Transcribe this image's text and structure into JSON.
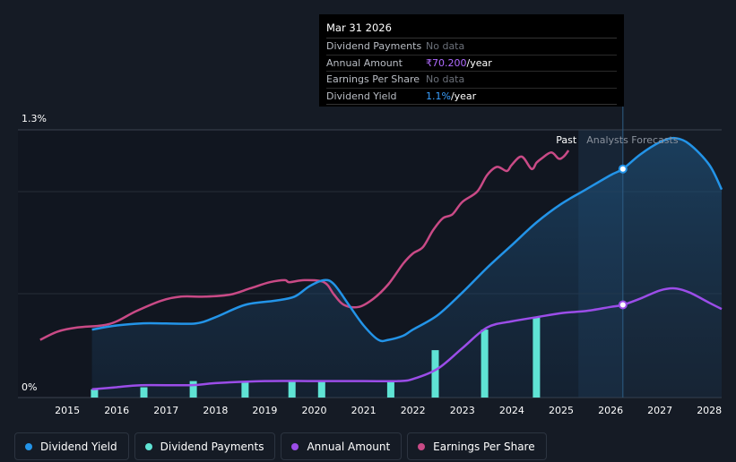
{
  "tooltip": {
    "date": "Mar 31 2026",
    "rows": [
      {
        "label": "Dividend Payments",
        "value": "No data"
      },
      {
        "label": "Annual Amount",
        "value_hl": "₹70.200",
        "value_rest": "/year"
      },
      {
        "label": "Earnings Per Share",
        "value": "No data"
      },
      {
        "label": "Dividend Yield",
        "value_hl": "1.1%",
        "value_rest": "/year"
      }
    ]
  },
  "legend": [
    {
      "label": "Dividend Yield",
      "color": "#2394e8"
    },
    {
      "label": "Dividend Payments",
      "color": "#5fe3d4"
    },
    {
      "label": "Annual Amount",
      "color": "#9b4de8"
    },
    {
      "label": "Earnings Per Share",
      "color": "#c94a86"
    }
  ],
  "chart_data": {
    "type": "line",
    "title": "",
    "y_tick_labels": [
      "1.3%",
      "0%"
    ],
    "ylim": [
      0,
      1.3
    ],
    "x_tick_labels": [
      "2015",
      "2016",
      "2017",
      "2018",
      "2019",
      "2020",
      "2021",
      "2022",
      "2023",
      "2024",
      "2025",
      "2026",
      "2027",
      "2028"
    ],
    "xlim": [
      2014.0,
      2028.25
    ],
    "past_label": "Past",
    "forecast_label": "Analysts Forecasts",
    "forecast_start": 2025.35,
    "tooltip_x": 2026.25,
    "colors": {
      "dividend_yield": "#2394e8",
      "dividend_payments": "#5fe3d4",
      "annual_amount": "#9b4de8",
      "earnings_per_share": "#c94a86"
    },
    "series": [
      {
        "name": "Dividend Yield",
        "unit": "%",
        "points": [
          [
            2015.5,
            0.33
          ],
          [
            2016.0,
            0.35
          ],
          [
            2016.5,
            0.36
          ],
          [
            2017.0,
            0.36
          ],
          [
            2017.6,
            0.36
          ],
          [
            2018.0,
            0.39
          ],
          [
            2018.6,
            0.45
          ],
          [
            2019.2,
            0.47
          ],
          [
            2019.6,
            0.49
          ],
          [
            2019.9,
            0.54
          ],
          [
            2020.2,
            0.57
          ],
          [
            2020.4,
            0.55
          ],
          [
            2020.7,
            0.45
          ],
          [
            2021.0,
            0.35
          ],
          [
            2021.3,
            0.28
          ],
          [
            2021.5,
            0.28
          ],
          [
            2021.8,
            0.3
          ],
          [
            2022.0,
            0.33
          ],
          [
            2022.5,
            0.4
          ],
          [
            2023.0,
            0.51
          ],
          [
            2023.5,
            0.63
          ],
          [
            2024.0,
            0.74
          ],
          [
            2024.5,
            0.85
          ],
          [
            2025.0,
            0.94
          ],
          [
            2025.5,
            1.01
          ],
          [
            2026.0,
            1.08
          ],
          [
            2026.25,
            1.11
          ],
          [
            2026.6,
            1.18
          ],
          [
            2027.0,
            1.24
          ],
          [
            2027.3,
            1.26
          ],
          [
            2027.6,
            1.23
          ],
          [
            2028.0,
            1.13
          ],
          [
            2028.25,
            1.01
          ]
        ]
      },
      {
        "name": "Annual Amount",
        "unit": "% scale",
        "points": [
          [
            2015.5,
            0.04
          ],
          [
            2016.0,
            0.05
          ],
          [
            2016.5,
            0.06
          ],
          [
            2017.5,
            0.06
          ],
          [
            2018.0,
            0.07
          ],
          [
            2019.0,
            0.08
          ],
          [
            2020.0,
            0.08
          ],
          [
            2021.0,
            0.08
          ],
          [
            2021.7,
            0.08
          ],
          [
            2022.0,
            0.09
          ],
          [
            2022.5,
            0.14
          ],
          [
            2023.0,
            0.24
          ],
          [
            2023.5,
            0.34
          ],
          [
            2024.0,
            0.37
          ],
          [
            2024.5,
            0.39
          ],
          [
            2025.0,
            0.41
          ],
          [
            2025.5,
            0.42
          ],
          [
            2026.0,
            0.44
          ],
          [
            2026.25,
            0.45
          ],
          [
            2026.6,
            0.48
          ],
          [
            2027.0,
            0.52
          ],
          [
            2027.3,
            0.53
          ],
          [
            2027.6,
            0.51
          ],
          [
            2028.0,
            0.46
          ],
          [
            2028.25,
            0.43
          ]
        ]
      },
      {
        "name": "Earnings Per Share",
        "unit": "% scale",
        "points": [
          [
            2014.45,
            0.28
          ],
          [
            2014.8,
            0.32
          ],
          [
            2015.2,
            0.34
          ],
          [
            2015.7,
            0.35
          ],
          [
            2016.0,
            0.37
          ],
          [
            2016.4,
            0.42
          ],
          [
            2016.9,
            0.47
          ],
          [
            2017.3,
            0.49
          ],
          [
            2017.8,
            0.49
          ],
          [
            2018.3,
            0.5
          ],
          [
            2018.7,
            0.53
          ],
          [
            2019.1,
            0.56
          ],
          [
            2019.4,
            0.57
          ],
          [
            2019.5,
            0.56
          ],
          [
            2019.8,
            0.57
          ],
          [
            2020.2,
            0.56
          ],
          [
            2020.4,
            0.5
          ],
          [
            2020.6,
            0.45
          ],
          [
            2020.9,
            0.44
          ],
          [
            2021.2,
            0.48
          ],
          [
            2021.5,
            0.55
          ],
          [
            2021.8,
            0.65
          ],
          [
            2022.0,
            0.7
          ],
          [
            2022.2,
            0.73
          ],
          [
            2022.4,
            0.81
          ],
          [
            2022.6,
            0.87
          ],
          [
            2022.8,
            0.89
          ],
          [
            2023.0,
            0.95
          ],
          [
            2023.3,
            1.0
          ],
          [
            2023.5,
            1.08
          ],
          [
            2023.7,
            1.12
          ],
          [
            2023.9,
            1.1
          ],
          [
            2024.0,
            1.13
          ],
          [
            2024.2,
            1.17
          ],
          [
            2024.4,
            1.11
          ],
          [
            2024.5,
            1.14
          ],
          [
            2024.6,
            1.16
          ],
          [
            2024.8,
            1.19
          ],
          [
            2024.95,
            1.16
          ],
          [
            2025.05,
            1.17
          ],
          [
            2025.15,
            1.2
          ]
        ]
      },
      {
        "name": "Dividend Payments",
        "unit": "% scale",
        "bars": [
          [
            2015.55,
            0.04
          ],
          [
            2016.55,
            0.05
          ],
          [
            2017.55,
            0.08
          ],
          [
            2018.6,
            0.08
          ],
          [
            2019.55,
            0.08
          ],
          [
            2020.15,
            0.08
          ],
          [
            2021.55,
            0.08
          ],
          [
            2022.45,
            0.23
          ],
          [
            2023.45,
            0.33
          ],
          [
            2024.5,
            0.39
          ]
        ]
      }
    ]
  }
}
